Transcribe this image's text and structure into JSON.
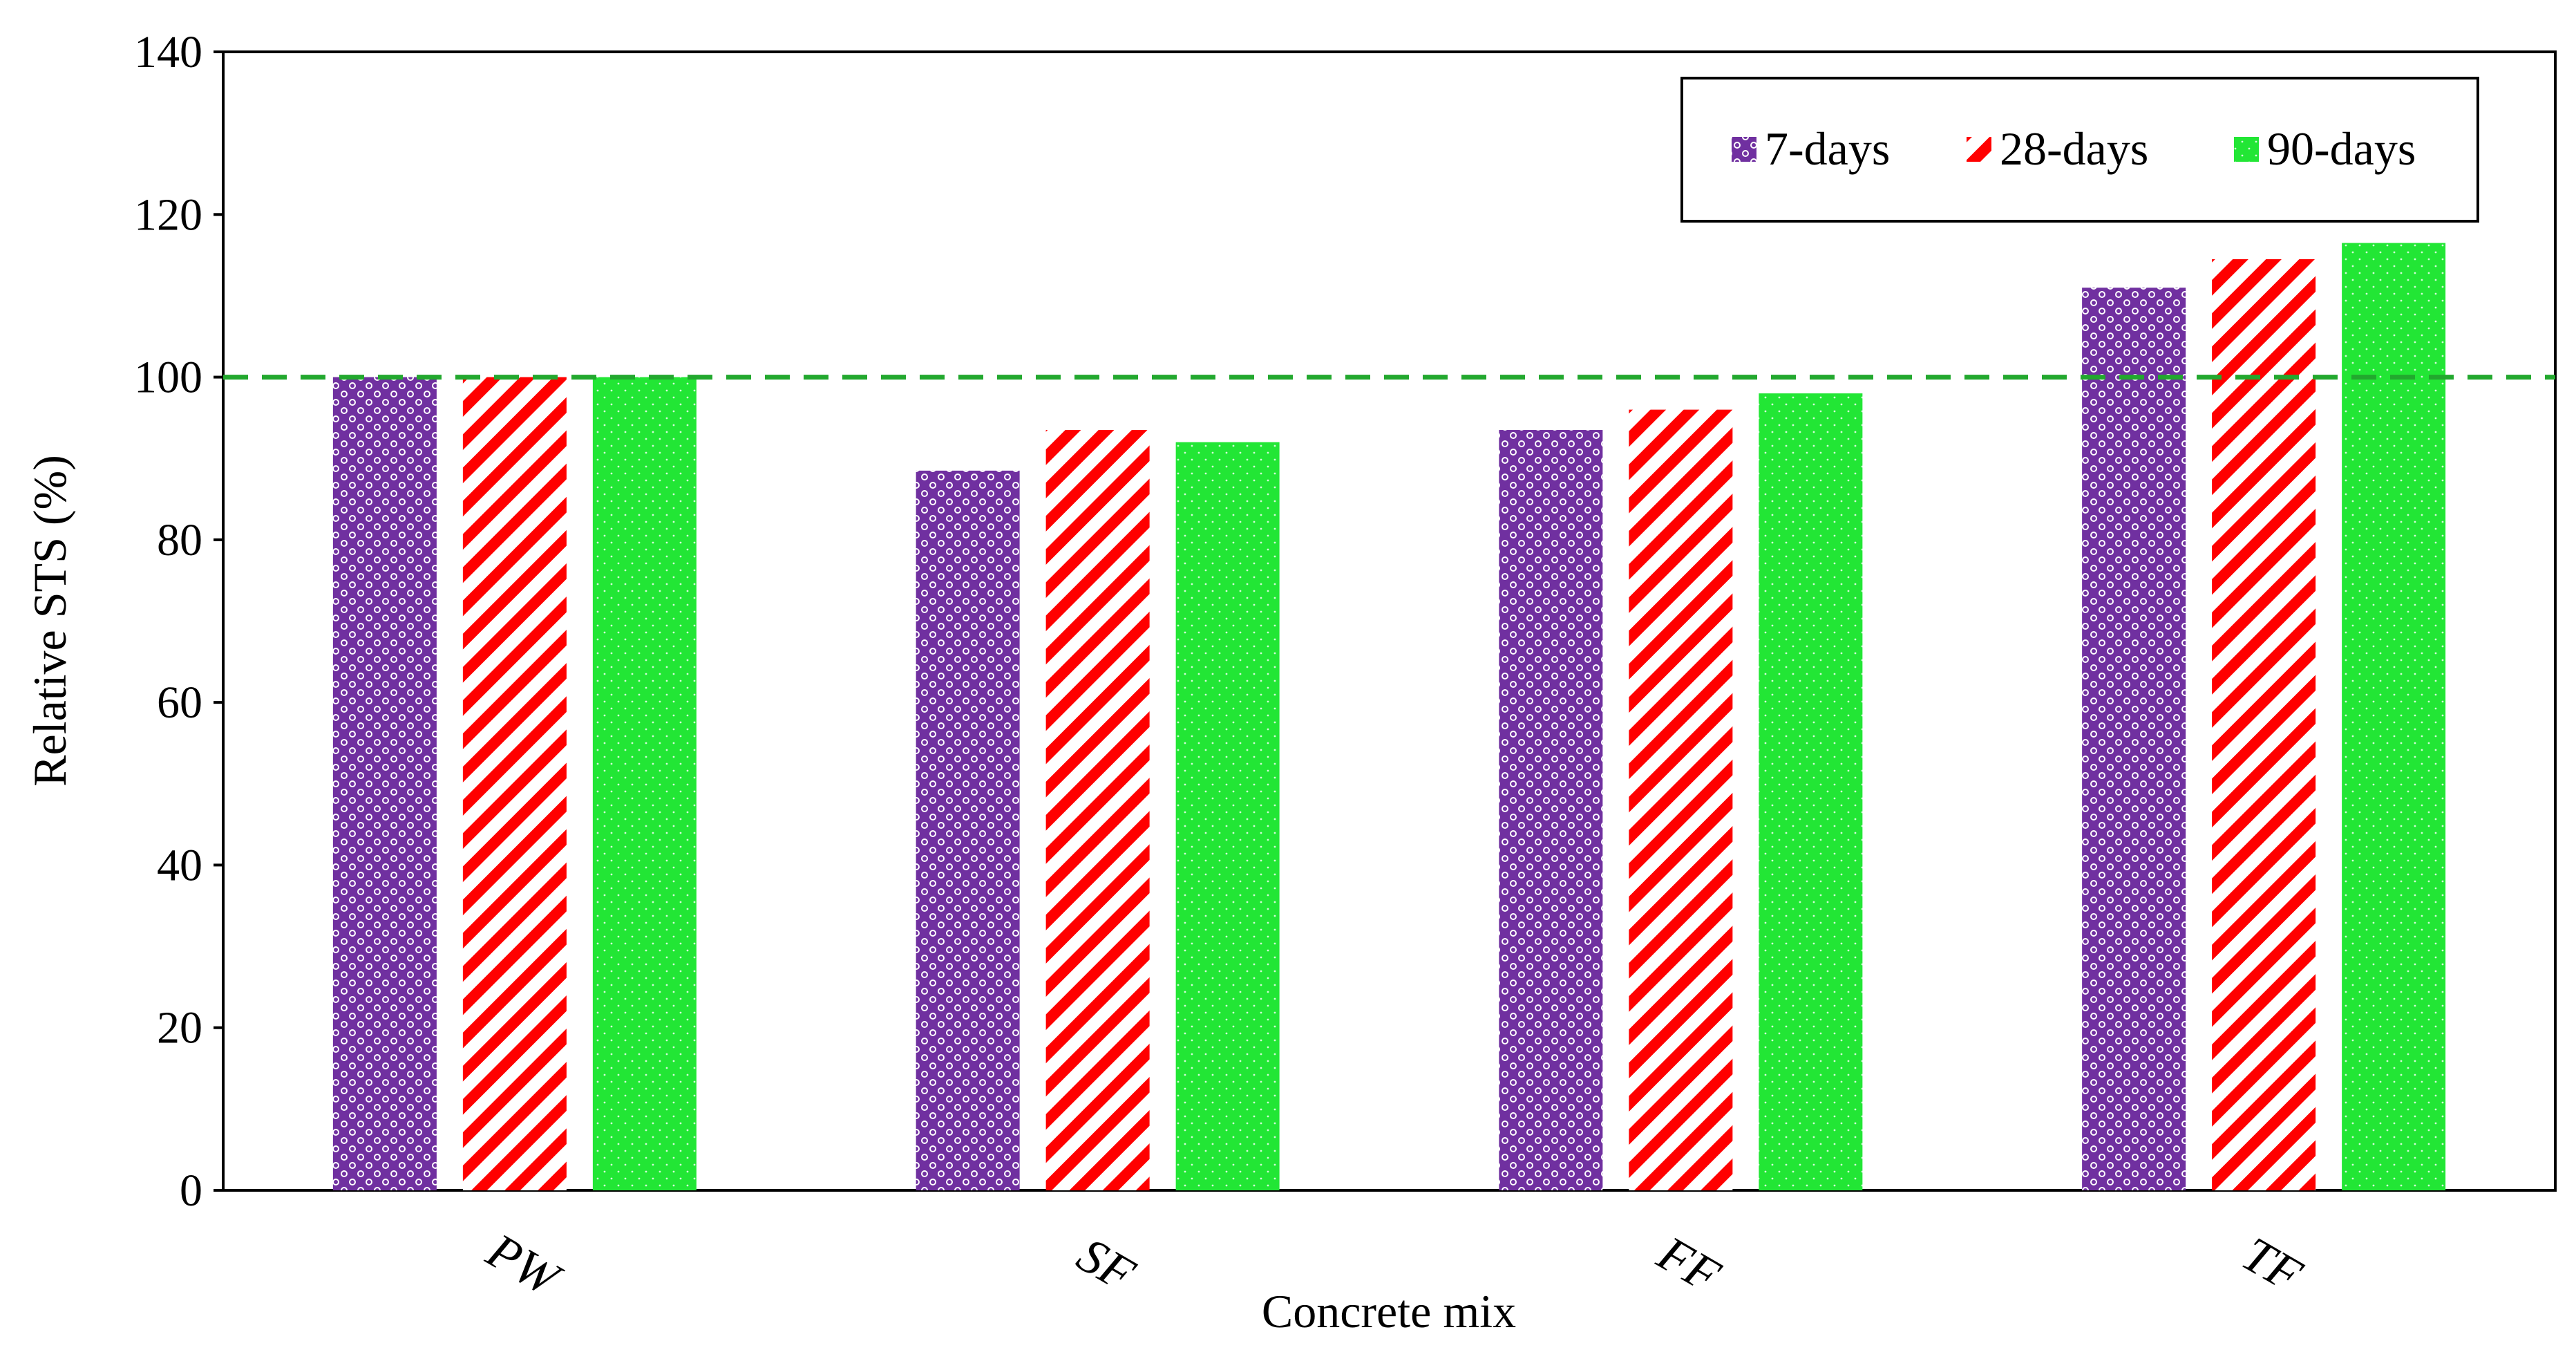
{
  "chart_data": {
    "type": "bar",
    "title": "",
    "xlabel": "Concrete mix",
    "ylabel": "Relative STS (%)",
    "ylim": [
      0,
      140
    ],
    "yticks": [
      0,
      20,
      40,
      60,
      80,
      100,
      120,
      140
    ],
    "categories": [
      "PW",
      "SF",
      "FF",
      "TF"
    ],
    "series": [
      {
        "name": "7-days",
        "values": [
          100,
          88.5,
          93.5,
          111
        ],
        "color": "#7030A0",
        "pattern": "dotted-circles"
      },
      {
        "name": "28-days",
        "values": [
          100,
          93.5,
          96,
          114.5
        ],
        "color": "#FF0000",
        "pattern": "diagonal-stripes"
      },
      {
        "name": "90-days",
        "values": [
          100,
          92,
          98,
          116.5
        ],
        "color": "#22E635",
        "pattern": "solid-dots"
      }
    ],
    "reference_line": {
      "value": 100,
      "style": "dashed",
      "color": "#22A82E"
    },
    "legend_position": "top-right",
    "grid": false
  }
}
